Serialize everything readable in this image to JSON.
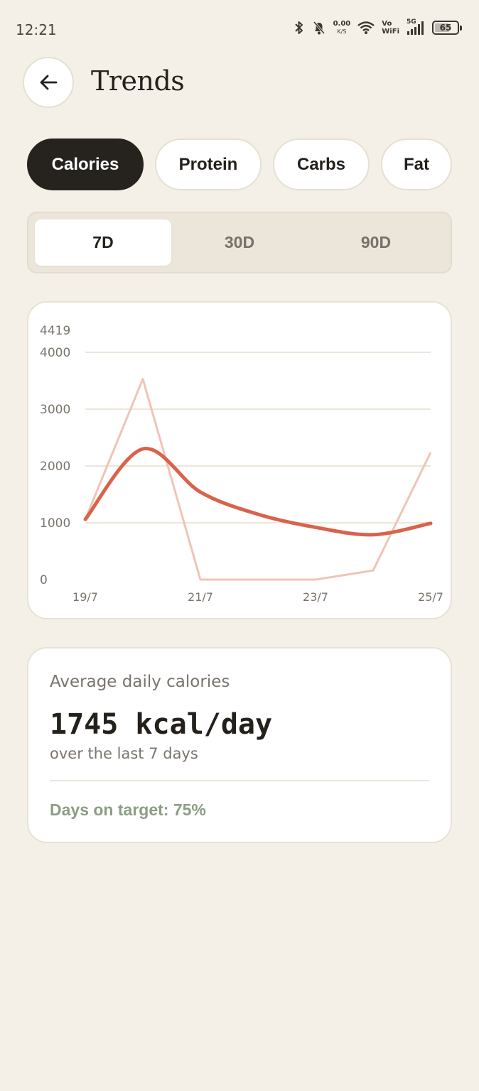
{
  "status_bar": {
    "time": "12:21",
    "net_speed_value": "0.00",
    "net_speed_unit": "K/S",
    "vowifi_top": "Vo",
    "vowifi_bottom": "WiFi",
    "network": "5G",
    "battery": "65",
    "battery_level": 0.65
  },
  "header": {
    "back_icon": "arrow-left-icon",
    "title": "Trends"
  },
  "metric_tabs": [
    {
      "label": "Calories",
      "active": true
    },
    {
      "label": "Protein",
      "active": false
    },
    {
      "label": "Carbs",
      "active": false
    },
    {
      "label": "Fat",
      "active": false
    }
  ],
  "range_tabs": [
    {
      "label": "7D",
      "active": true
    },
    {
      "label": "30D",
      "active": false
    },
    {
      "label": "90D",
      "active": false
    }
  ],
  "chart_data": {
    "type": "line",
    "max_label": "4419",
    "ylim": [
      0,
      4419
    ],
    "y_ticks": [
      0,
      1000,
      2000,
      3000,
      4000
    ],
    "x_tick_labels": [
      "19/7",
      "21/7",
      "23/7",
      "25/7"
    ],
    "x_tick_index": [
      0,
      2,
      4,
      6
    ],
    "grid": true,
    "series": [
      {
        "role": "daily",
        "color": "#f0c4b6",
        "values": [
          1060,
          3530,
          0,
          0,
          0,
          160,
          2240
        ]
      },
      {
        "role": "trend",
        "color": "#d9634a",
        "values": [
          1060,
          2300,
          1540,
          1150,
          920,
          790,
          990
        ]
      }
    ]
  },
  "summary": {
    "label": "Average daily calories",
    "value": "1745 kcal/day",
    "subtitle": "over the last 7 days",
    "target": "Days on target: 75%"
  },
  "colors": {
    "background": "#f4efe7",
    "accent": "#d9634a",
    "target_green": "#8b9e84"
  }
}
